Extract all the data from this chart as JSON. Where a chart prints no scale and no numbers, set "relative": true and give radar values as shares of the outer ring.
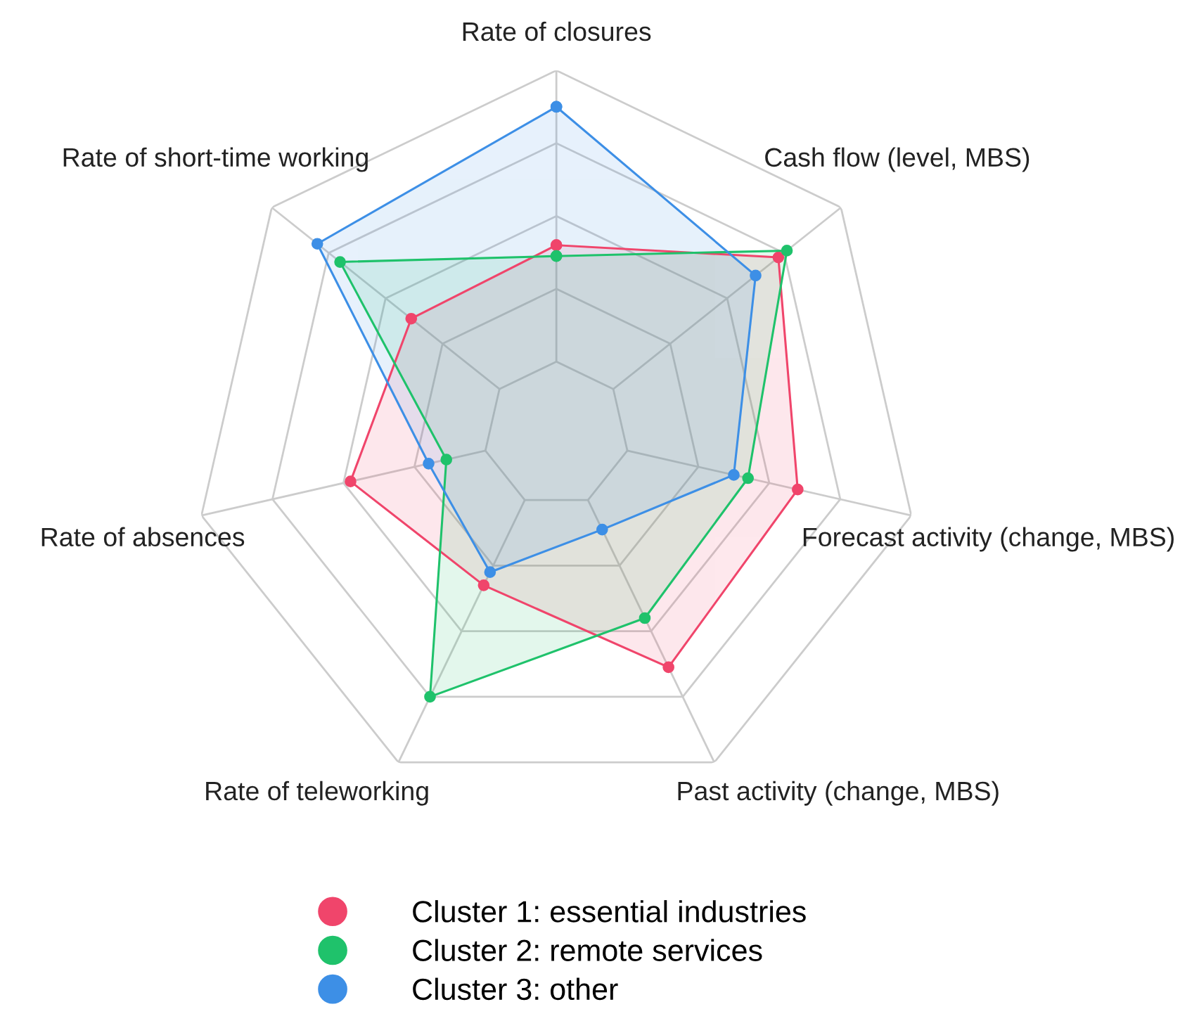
{
  "chart_data": {
    "type": "radar",
    "relative": true,
    "grid": true,
    "legend": "bottom",
    "marker": "circle",
    "line_style": "solid",
    "categories": [
      "Rate of closures",
      "Cash flow (level, MBS)",
      "Forecast activity (change, MBS)",
      "Past activity (change, MBS)",
      "Rate of teleworking",
      "Rate of absences",
      "Rate of short-time working"
    ],
    "series": [
      {
        "name": "Cluster 1: essential industries",
        "color": "#f0456b",
        "values": [
          0.52,
          0.78,
          0.68,
          0.71,
          0.46,
          0.58,
          0.51
        ]
      },
      {
        "name": "Cluster 2: remote services",
        "color": "#1fc26b",
        "values": [
          0.49,
          0.81,
          0.54,
          0.56,
          0.8,
          0.31,
          0.76
        ]
      },
      {
        "name": "Cluster 3: other",
        "color": "#3d8fe6",
        "values": [
          0.9,
          0.7,
          0.5,
          0.29,
          0.42,
          0.36,
          0.84
        ]
      }
    ]
  }
}
